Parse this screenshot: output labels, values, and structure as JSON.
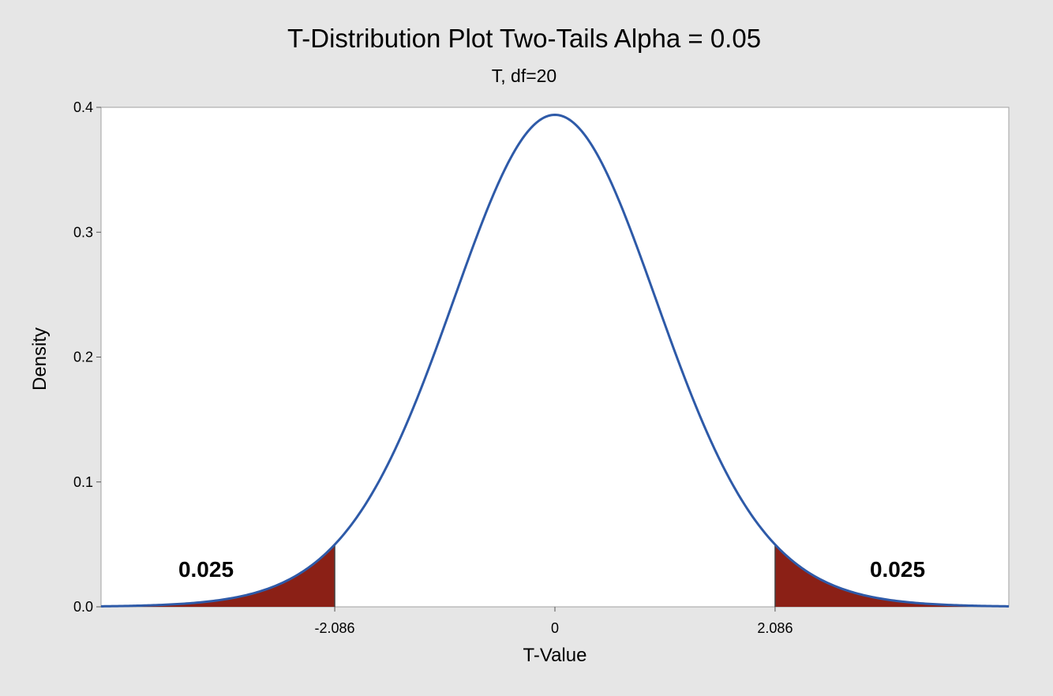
{
  "chart_data": {
    "type": "area",
    "title": "T-Distribution Plot Two-Tails Alpha = 0.05",
    "subtitle": "T, df=20",
    "xlabel": "T-Value",
    "ylabel": "Density",
    "distribution": "t",
    "df": 20,
    "alpha": 0.05,
    "xlim": [
      -4.3,
      4.3
    ],
    "ylim": [
      0,
      0.4
    ],
    "y_ticks": [
      "0.0",
      "0.1",
      "0.2",
      "0.3",
      "0.4"
    ],
    "x_ticks": [
      {
        "value": -2.086,
        "label": "-2.086"
      },
      {
        "value": 0,
        "label": "0"
      },
      {
        "value": 2.086,
        "label": "2.086"
      }
    ],
    "critical_values": [
      -2.086,
      2.086
    ],
    "tail_areas": [
      {
        "side": "left",
        "label": "0.025",
        "value": 0.025
      },
      {
        "side": "right",
        "label": "0.025",
        "value": 0.025
      }
    ],
    "curve_color": "#2e5aa8",
    "tail_fill_color": "#8b2016",
    "grid": false
  }
}
